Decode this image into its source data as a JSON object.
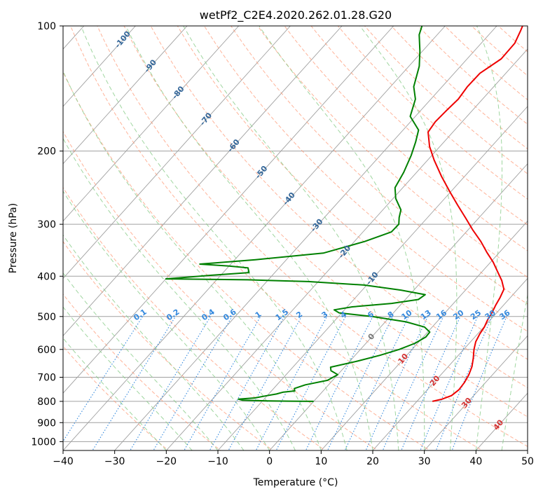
{
  "chart_data": {
    "type": "line",
    "title": "wetPf2_C2E4.2020.262.01.28.G20",
    "xlabel": "Temperature (°C)",
    "ylabel": "Pressure (hPa)",
    "xlim": [
      -40,
      50
    ],
    "ylim": [
      1050,
      100
    ],
    "y_scale": "log",
    "grid": true,
    "x_ticks": [
      "−40",
      "−30",
      "−20",
      "−10",
      "0",
      "10",
      "20",
      "30",
      "40",
      "50"
    ],
    "x_tick_values": [
      -40,
      -30,
      -20,
      -10,
      0,
      10,
      20,
      30,
      40,
      50
    ],
    "y_ticks": [
      "100",
      "200",
      "300",
      "400",
      "500",
      "600",
      "700",
      "800",
      "900",
      "1000"
    ],
    "y_tick_values": [
      100,
      200,
      300,
      400,
      500,
      600,
      700,
      800,
      900,
      1000
    ],
    "colors": {
      "temperature": "#ee0000",
      "dewpoint": "#008000",
      "isotherm": "#a0a0a0",
      "dry_adiabat": "#ff9977",
      "moist_adiabat": "#88cc88",
      "mixing_ratio": "#3388dd",
      "isobar": "#a0a0a0",
      "frame": "#000000"
    },
    "series": [
      {
        "key": "temperature",
        "points": [
          [
            800,
            23.0
          ],
          [
            790,
            24.5
          ],
          [
            775,
            25.7
          ],
          [
            750,
            26.1
          ],
          [
            720,
            25.9
          ],
          [
            690,
            25.4
          ],
          [
            660,
            24.6
          ],
          [
            630,
            23.4
          ],
          [
            600,
            22.0
          ],
          [
            575,
            21.0
          ],
          [
            550,
            20.4
          ],
          [
            530,
            20.1
          ],
          [
            510,
            19.5
          ],
          [
            490,
            19.1
          ],
          [
            470,
            18.5
          ],
          [
            450,
            18.0
          ],
          [
            430,
            17.3
          ],
          [
            410,
            15.4
          ],
          [
            390,
            13.0
          ],
          [
            370,
            10.5
          ],
          [
            350,
            7.5
          ],
          [
            330,
            4.5
          ],
          [
            310,
            1.0
          ],
          [
            290,
            -2.5
          ],
          [
            270,
            -6.3
          ],
          [
            250,
            -10.3
          ],
          [
            230,
            -14.5
          ],
          [
            210,
            -18.8
          ],
          [
            195,
            -22.0
          ],
          [
            180,
            -24.8
          ],
          [
            170,
            -25.2
          ],
          [
            160,
            -25.0
          ],
          [
            150,
            -24.7
          ],
          [
            140,
            -25.1
          ],
          [
            130,
            -25.0
          ],
          [
            120,
            -23.4
          ],
          [
            110,
            -23.5
          ],
          [
            103,
            -24.5
          ],
          [
            100,
            -25.0
          ]
        ]
      },
      {
        "key": "dewpoint",
        "points": [
          [
            800,
            0.0
          ],
          [
            799,
            -5.0
          ],
          [
            798,
            -9.0
          ],
          [
            795,
            -14.0
          ],
          [
            790,
            -15.0
          ],
          [
            785,
            -12.0
          ],
          [
            775,
            -10.0
          ],
          [
            768,
            -8.5
          ],
          [
            760,
            -7.5
          ],
          [
            755,
            -5.5
          ],
          [
            745,
            -6.0
          ],
          [
            730,
            -4.5
          ],
          [
            712,
            -1.0
          ],
          [
            690,
            0.0
          ],
          [
            675,
            -2.0
          ],
          [
            662,
            -2.7
          ],
          [
            640,
            1.5
          ],
          [
            620,
            4.8
          ],
          [
            600,
            7.5
          ],
          [
            580,
            9.5
          ],
          [
            560,
            10.5
          ],
          [
            545,
            10.4
          ],
          [
            530,
            8.5
          ],
          [
            515,
            4.0
          ],
          [
            500,
            -3.5
          ],
          [
            490,
            -10.5
          ],
          [
            482,
            -12.0
          ],
          [
            474,
            -9.0
          ],
          [
            465,
            -2.0
          ],
          [
            455,
            2.5
          ],
          [
            443,
            3.0
          ],
          [
            432,
            -2.5
          ],
          [
            420,
            -10.5
          ],
          [
            412,
            -22.0
          ],
          [
            408,
            -34.0
          ],
          [
            406,
            -50.0
          ],
          [
            398,
            -42.0
          ],
          [
            392,
            -35.0
          ],
          [
            382,
            -36.0
          ],
          [
            378,
            -40.0
          ],
          [
            374,
            -46.0
          ],
          [
            365,
            -36.0
          ],
          [
            352,
            -24.0
          ],
          [
            330,
            -18.0
          ],
          [
            313,
            -14.5
          ],
          [
            300,
            -14.4
          ],
          [
            289,
            -15.5
          ],
          [
            277,
            -16.5
          ],
          [
            260,
            -19.5
          ],
          [
            245,
            -21.5
          ],
          [
            225,
            -22.5
          ],
          [
            205,
            -24.0
          ],
          [
            190,
            -25.5
          ],
          [
            178,
            -27.0
          ],
          [
            165,
            -31.0
          ],
          [
            150,
            -33.0
          ],
          [
            140,
            -35.5
          ],
          [
            125,
            -38.0
          ],
          [
            115,
            -40.5
          ],
          [
            105,
            -43.5
          ],
          [
            100,
            -44.5
          ]
        ]
      }
    ],
    "isotherm_labels": [],
    "dry_adiabat_labels": [
      "0",
      "10",
      "20",
      "30",
      "40"
    ],
    "moist_adiabat_labels": [
      "-100",
      "-90",
      "-80",
      "-70",
      "-60",
      "-50",
      "-40",
      "-30",
      "-20",
      "-10"
    ],
    "mixing_ratio_labels": [
      "0.1",
      "0.2",
      "0.4",
      "0.6",
      "1",
      "1.5",
      "2",
      "3",
      "4",
      "6",
      "8",
      "10",
      "13",
      "16",
      "20",
      "25",
      "30",
      "36"
    ]
  }
}
